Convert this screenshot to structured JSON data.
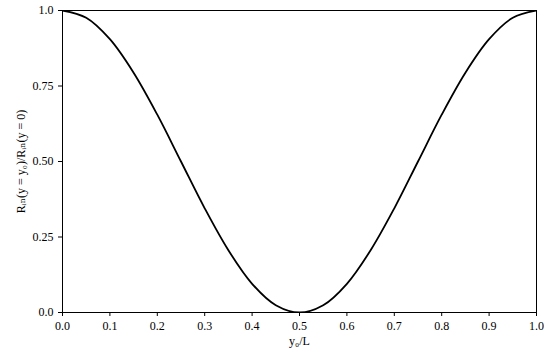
{
  "chart_data": {
    "type": "line",
    "x_label": "y₀/L",
    "y_label": "Rᵢₙ(y = y₀)/Rᵢₙ(y = 0)",
    "x": [
      0,
      0.05,
      0.1,
      0.15,
      0.2,
      0.25,
      0.3,
      0.35,
      0.4,
      0.45,
      0.5,
      0.55,
      0.6,
      0.65,
      0.7,
      0.75,
      0.8,
      0.85,
      0.9,
      0.95,
      1.0
    ],
    "values": [
      1.0,
      0.976,
      0.905,
      0.794,
      0.655,
      0.5,
      0.345,
      0.206,
      0.095,
      0.024,
      0.0,
      0.024,
      0.095,
      0.206,
      0.345,
      0.5,
      0.655,
      0.794,
      0.905,
      0.976,
      1.0
    ],
    "color": "#000000",
    "xlim": [
      0,
      1
    ],
    "ylim": [
      0,
      1
    ],
    "xticks": [
      {
        "value": 0,
        "label": "0.0"
      },
      0.1,
      0.2,
      0.3,
      0.4,
      0.5,
      0.6,
      0.7,
      0.8,
      0.9,
      {
        "value": 1,
        "label": "1.0"
      }
    ],
    "yticks": [
      {
        "value": 0,
        "label": "0.0"
      },
      0.25,
      {
        "value": 0.5,
        "label": "0.50"
      },
      0.75,
      {
        "value": 1,
        "label": "1.0"
      }
    ],
    "grid": false
  }
}
